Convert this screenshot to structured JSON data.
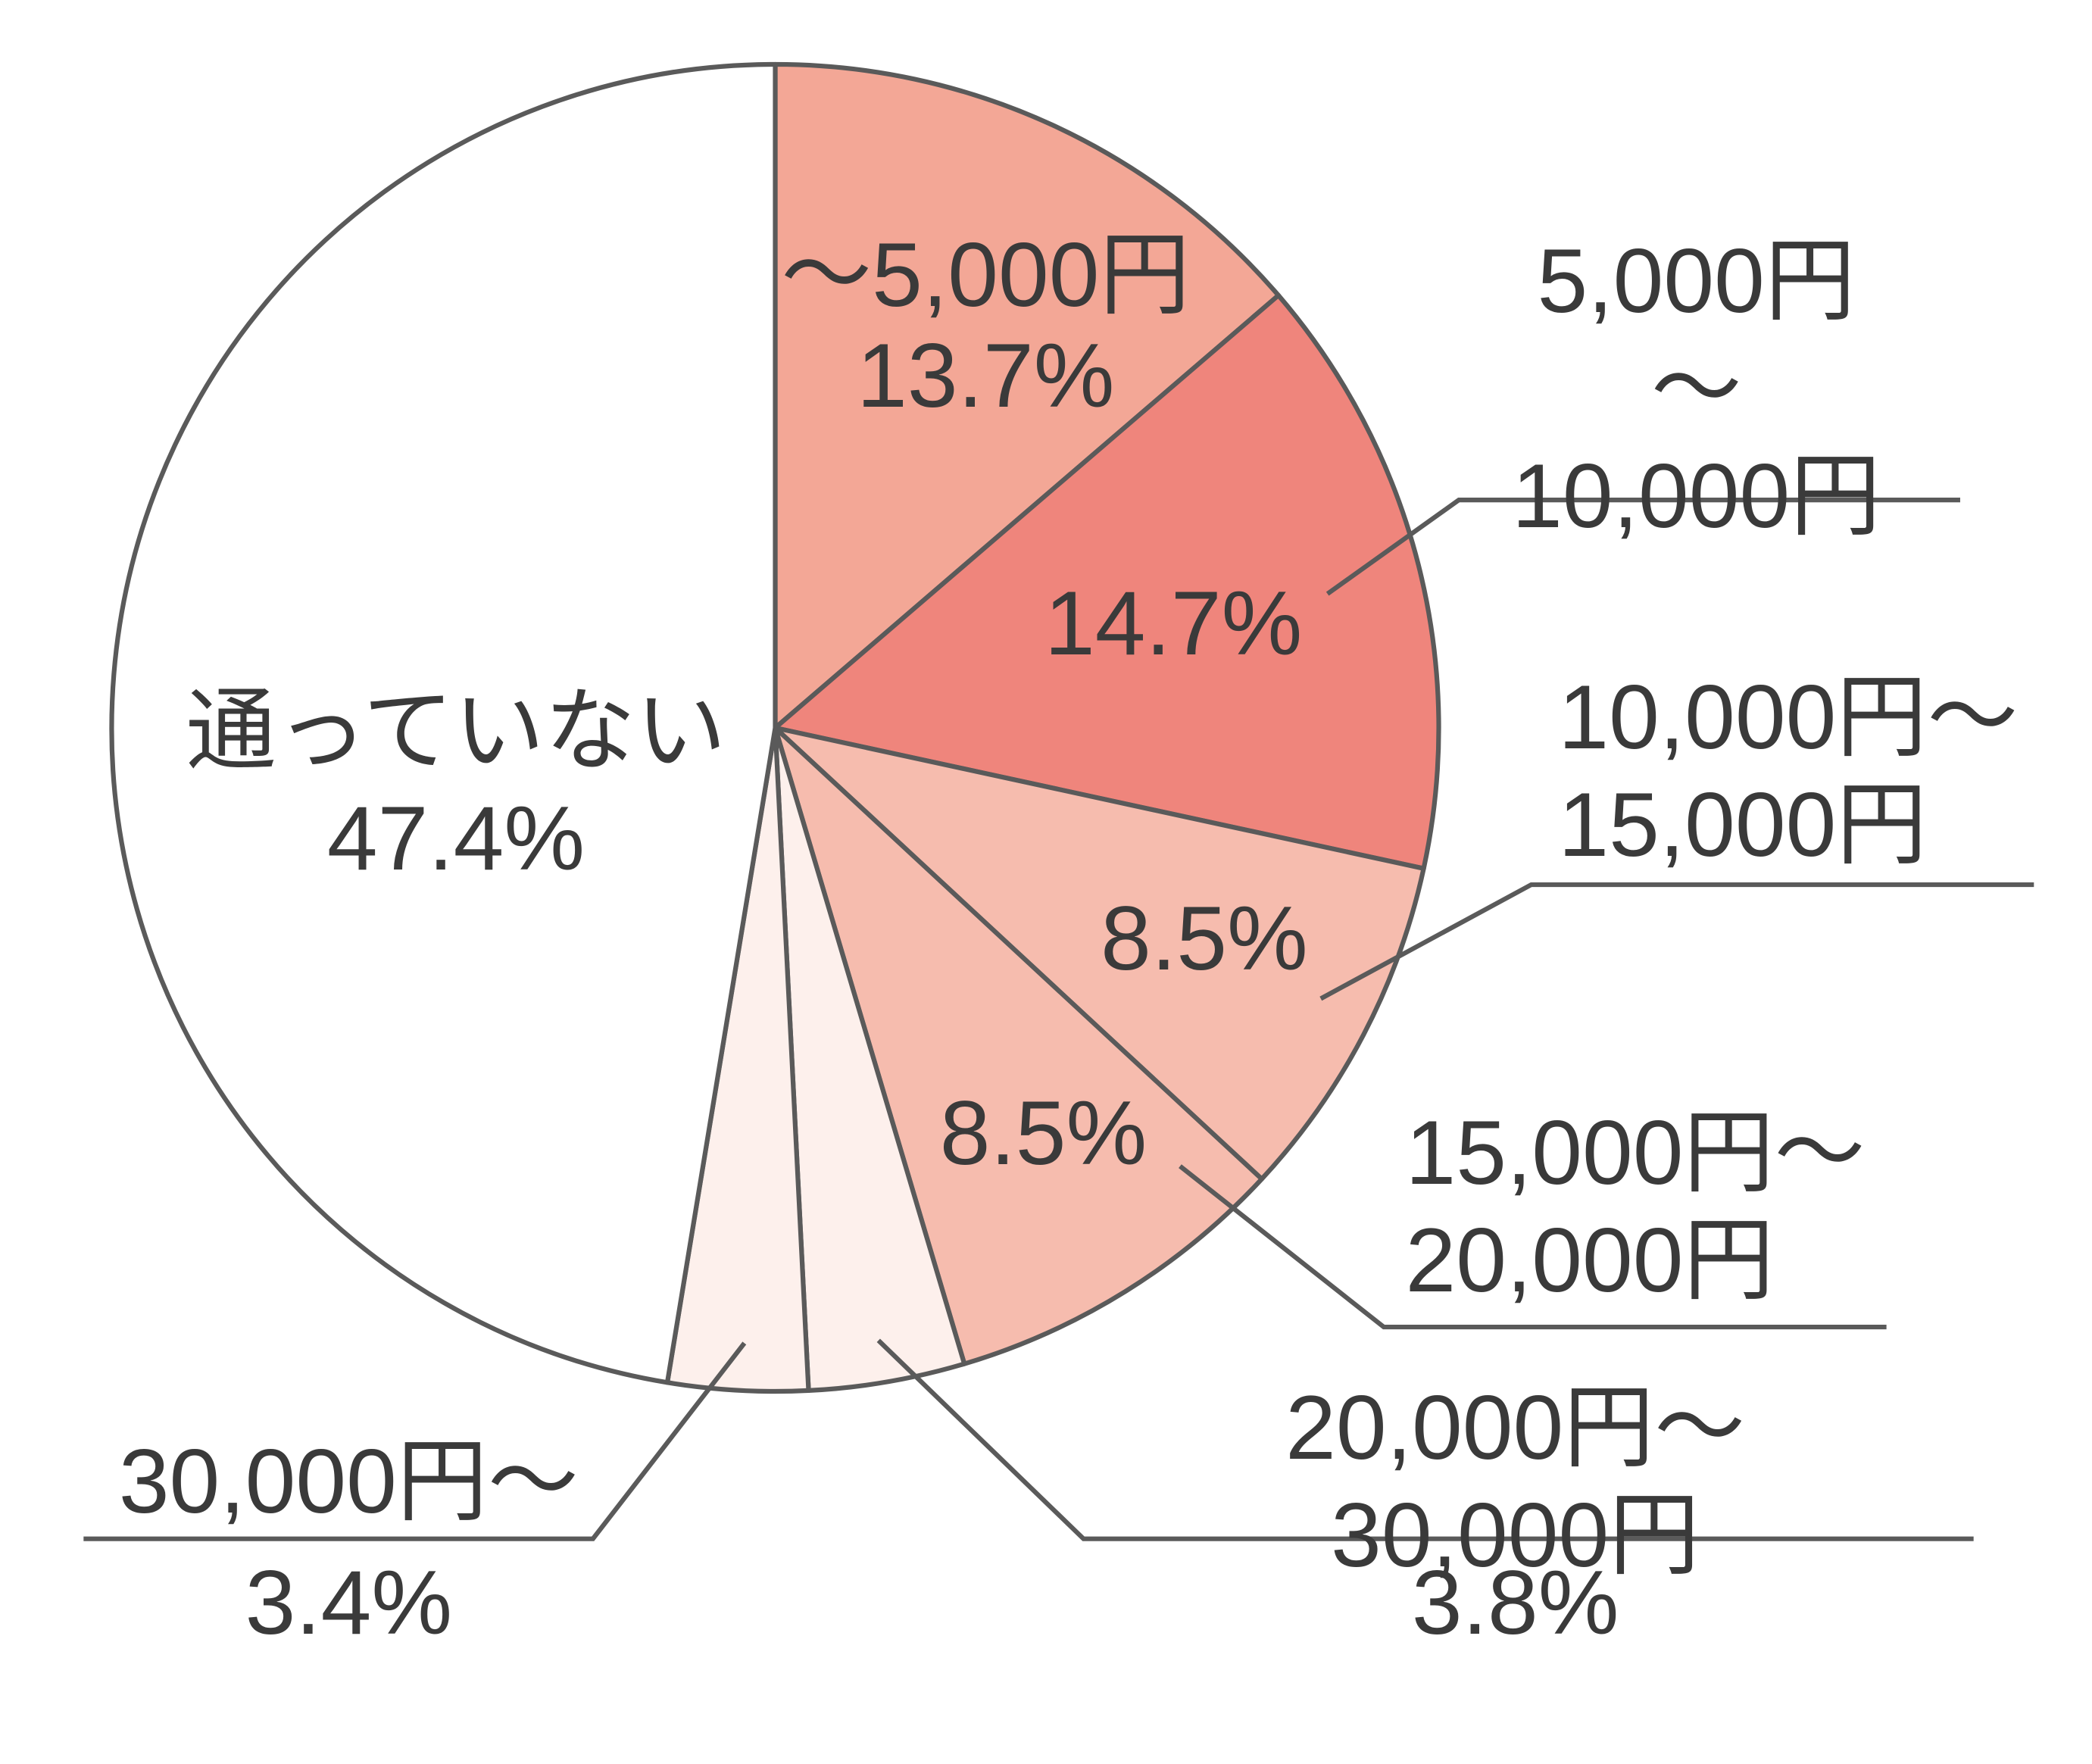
{
  "chart_data": {
    "type": "pie",
    "categories": [
      "～5,000円",
      "5,000円～\n10,000円",
      "10,000円～\n15,000円",
      "15,000円～\n20,000円",
      "20,000円～30,000円",
      "30,000円～",
      "通っていない"
    ],
    "values": [
      13.7,
      14.7,
      8.5,
      8.5,
      3.8,
      3.4,
      47.4
    ],
    "value_labels": [
      "13.7%",
      "14.7%",
      "8.5%",
      "8.5%",
      "3.8%",
      "3.4%",
      "47.4%"
    ],
    "colors": [
      "#f3a796",
      "#ef857c",
      "#f6bcae",
      "#f6bcae",
      "#fdf0ec",
      "#fdf0ec",
      "#ffffff"
    ]
  }
}
